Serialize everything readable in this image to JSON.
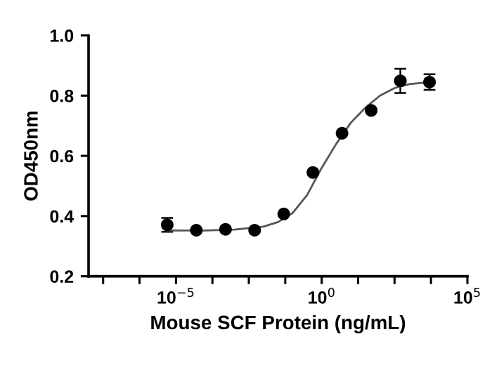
{
  "chart_data": {
    "type": "scatter",
    "xlabel": "Mouse SCF Protein (ng/mL)",
    "ylabel": "OD450nm",
    "log": "x",
    "xlim": [
      1e-08,
      100000
    ],
    "ylim": [
      0.2,
      1.0
    ],
    "xticks": [
      {
        "value": 3.16e-08,
        "label": null
      },
      {
        "value": 5.62e-07,
        "label": null
      },
      {
        "value": 1e-05,
        "label": "10$^{−5}$"
      },
      {
        "value": 0.000178,
        "label": null
      },
      {
        "value": 0.00316,
        "label": null
      },
      {
        "value": 0.0562,
        "label": null
      },
      {
        "value": 1,
        "label": "10$^{0}$"
      },
      {
        "value": 17.8,
        "label": null
      },
      {
        "value": 316,
        "label": null
      },
      {
        "value": 5620,
        "label": null
      },
      {
        "value": 100000,
        "label": "10$^{5}$"
      }
    ],
    "yticks": [
      {
        "value": 0.2,
        "label": "0.2"
      },
      {
        "value": 0.4,
        "label": "0.4"
      },
      {
        "value": 0.6,
        "label": "0.6"
      },
      {
        "value": 0.8,
        "label": "0.8"
      },
      {
        "value": 1.0,
        "label": "1.0"
      }
    ],
    "grid": false,
    "legend": false,
    "series": [
      {
        "color": "#000000",
        "marker": "circle",
        "x": [
          5e-06,
          5e-05,
          0.0005,
          0.005,
          0.05,
          0.5,
          5,
          50,
          500,
          5000
        ],
        "values": [
          0.371,
          0.353,
          0.356,
          0.353,
          0.407,
          0.545,
          0.675,
          0.751,
          0.849,
          0.845
        ],
        "errors": [
          0.023,
          null,
          null,
          null,
          null,
          null,
          null,
          null,
          0.04,
          0.026
        ]
      },
      {
        "type": "line",
        "color": "#555555",
        "marker": "none",
        "line_style": "solid",
        "x": [
          5e-06,
          0.0001,
          0.001,
          0.01,
          0.0316,
          0.1,
          0.316,
          1,
          3.16,
          10,
          31.6,
          100,
          316,
          1000,
          5000
        ],
        "values": [
          0.352,
          0.352,
          0.355,
          0.365,
          0.38,
          0.41,
          0.47,
          0.56,
          0.64,
          0.71,
          0.76,
          0.8,
          0.825,
          0.838,
          0.845
        ]
      }
    ]
  }
}
